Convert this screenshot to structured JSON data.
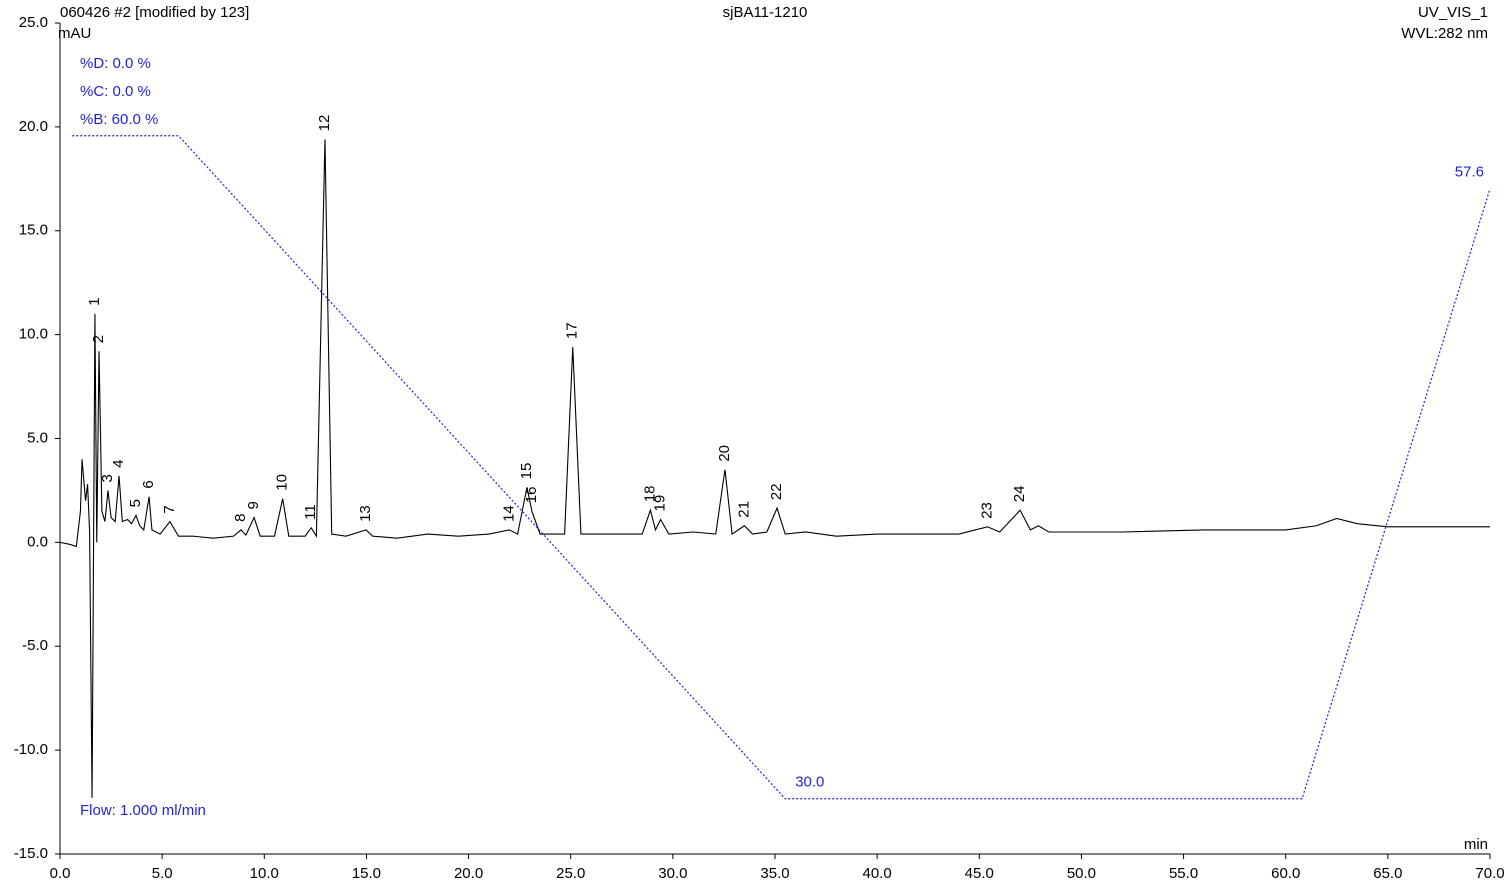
{
  "chart_data": {
    "type": "line",
    "title": "sjBA11-1210",
    "header_left": "060426 #2 [modified by 123]",
    "header_right": "UV_VIS_1",
    "wavelength": "WVL:282 nm",
    "ylabel": "mAU",
    "xlabel": "min",
    "annotations": [
      "%D: 0.0 %",
      "%C: 0.0 %",
      "%B: 60.0 %",
      "Flow: 1.000 ml/min"
    ],
    "xlim": [
      0,
      70
    ],
    "ylim": [
      -15,
      25
    ],
    "y2lim": [
      27.5,
      65.1
    ],
    "xticks": [
      {
        "value": 0,
        "label": "0.0"
      },
      {
        "value": 5,
        "label": "5.0"
      },
      {
        "value": 10,
        "label": "10.0"
      },
      {
        "value": 15,
        "label": "15.0"
      },
      {
        "value": 20,
        "label": "20.0"
      },
      {
        "value": 25,
        "label": "25.0"
      },
      {
        "value": 30,
        "label": "30.0"
      },
      {
        "value": 35,
        "label": "35.0"
      },
      {
        "value": 40,
        "label": "40.0"
      },
      {
        "value": 45,
        "label": "45.0"
      },
      {
        "value": 50,
        "label": "50.0"
      },
      {
        "value": 55,
        "label": "55.0"
      },
      {
        "value": 60,
        "label": "60.0"
      },
      {
        "value": 65,
        "label": "65.0"
      },
      {
        "value": 70,
        "label": "70.0"
      }
    ],
    "yticks": [
      {
        "value": -15,
        "label": "-15.0"
      },
      {
        "value": -10,
        "label": "-10.0"
      },
      {
        "value": -5,
        "label": "-5.0"
      },
      {
        "value": 0,
        "label": "0.0"
      },
      {
        "value": 5,
        "label": "5.0"
      },
      {
        "value": 10,
        "label": "10.0"
      },
      {
        "value": 15,
        "label": "15.0"
      },
      {
        "value": 20,
        "label": "20.0"
      },
      {
        "value": 25,
        "label": "25.0"
      }
    ],
    "grid": false,
    "series": [
      {
        "color": "#000000",
        "x": [
          0,
          0.5,
          0.8,
          1.0,
          1.08,
          1.25,
          1.35,
          1.45,
          1.57,
          1.71,
          1.8,
          1.91,
          2.05,
          2.2,
          2.35,
          2.5,
          2.7,
          2.89,
          3.05,
          3.3,
          3.5,
          3.72,
          3.9,
          4.1,
          4.36,
          4.5,
          4.9,
          5.38,
          5.8,
          6.5,
          7.5,
          8.5,
          8.86,
          9.1,
          9.5,
          9.8,
          10.5,
          10.9,
          11.2,
          12.0,
          12.3,
          12.55,
          12.97,
          13.3,
          14.0,
          14.98,
          15.3,
          16.5,
          18.0,
          19.5,
          21.0,
          22.0,
          22.4,
          22.86,
          23.1,
          23.5,
          24.7,
          25.1,
          25.5,
          27,
          28.5,
          28.9,
          29.15,
          29.4,
          29.8,
          31,
          32.1,
          32.55,
          32.9,
          33.5,
          33.9,
          34.6,
          35.1,
          35.5,
          36.5,
          38,
          40,
          42,
          44,
          45.4,
          46,
          47.0,
          47.5,
          47.9,
          48.4,
          52,
          56,
          60,
          61.5,
          62.5,
          63.5,
          65,
          70
        ],
        "values": [
          0,
          -0.1,
          -0.2,
          1.5,
          4.0,
          2.0,
          2.8,
          0.5,
          -12.3,
          11.0,
          0,
          9.2,
          1.5,
          1.0,
          2.5,
          1.2,
          1.0,
          3.2,
          1.0,
          1.1,
          0.9,
          1.3,
          0.8,
          0.6,
          2.2,
          0.6,
          0.4,
          1.0,
          0.3,
          0.3,
          0.2,
          0.3,
          0.6,
          0.35,
          1.2,
          0.3,
          0.3,
          2.1,
          0.3,
          0.3,
          0.7,
          0.3,
          19.4,
          0.4,
          0.3,
          0.6,
          0.3,
          0.2,
          0.4,
          0.3,
          0.4,
          0.6,
          0.4,
          2.65,
          1.5,
          0.4,
          0.4,
          9.4,
          0.4,
          0.4,
          0.4,
          1.55,
          0.6,
          1.1,
          0.4,
          0.5,
          0.4,
          3.5,
          0.4,
          0.8,
          0.4,
          0.5,
          1.65,
          0.4,
          0.5,
          0.3,
          0.4,
          0.4,
          0.4,
          0.75,
          0.5,
          1.55,
          0.6,
          0.8,
          0.5,
          0.5,
          0.6,
          0.6,
          0.8,
          1.15,
          0.9,
          0.75,
          0.75
        ],
        "labels": [
          null,
          null,
          null,
          null,
          null,
          null,
          null,
          null,
          null,
          "1",
          null,
          "2",
          null,
          null,
          "3",
          null,
          null,
          "4",
          null,
          null,
          null,
          "5",
          null,
          null,
          "6",
          null,
          null,
          "7",
          null,
          null,
          null,
          null,
          "8",
          null,
          "9",
          null,
          null,
          "10",
          null,
          null,
          "11",
          null,
          "12",
          null,
          null,
          "13",
          null,
          null,
          null,
          null,
          null,
          "14",
          null,
          "15",
          "16",
          null,
          null,
          "17",
          null,
          null,
          null,
          "18",
          null,
          "19",
          null,
          null,
          null,
          "20",
          null,
          "21",
          null,
          null,
          "22",
          null,
          null,
          null,
          null,
          null,
          null,
          "23",
          null,
          "24",
          null,
          null,
          null,
          null,
          null,
          null,
          null,
          null,
          null,
          null,
          null
        ]
      },
      {
        "color": "#2323d6",
        "axis": "y2",
        "x": [
          0.6,
          5.8,
          35.5,
          60.8,
          70
        ],
        "values": [
          60,
          60,
          30,
          30,
          57.6
        ],
        "value_labels": [
          null,
          null,
          "30.0",
          null,
          "57.6"
        ]
      }
    ]
  }
}
